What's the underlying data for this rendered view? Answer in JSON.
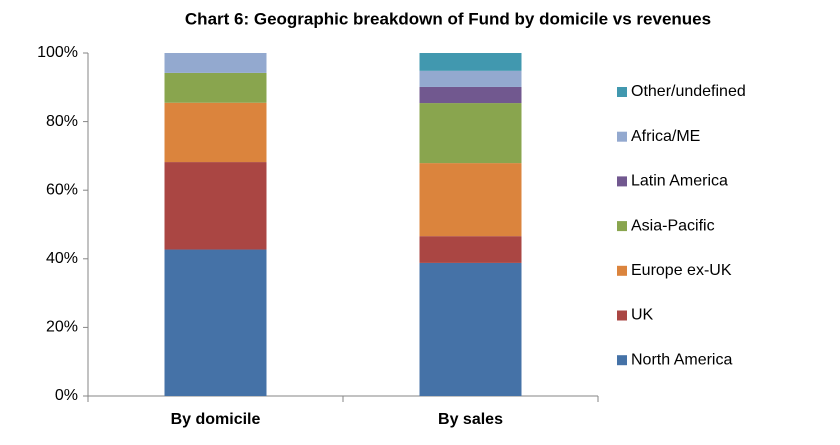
{
  "chart_data": {
    "type": "stacked_bar",
    "title": "Chart 6: Geographic breakdown of Fund by domicile vs revenues",
    "categories": [
      "By domicile",
      "By sales"
    ],
    "series": [
      {
        "name": "North America",
        "color": "#4572a7",
        "values": [
          42.7,
          38.8
        ]
      },
      {
        "name": "UK",
        "color": "#aa4643",
        "values": [
          25.5,
          7.8
        ]
      },
      {
        "name": "Europe ex-UK",
        "color": "#db843d",
        "values": [
          17.3,
          21.3
        ]
      },
      {
        "name": "Asia-Pacific",
        "color": "#89a54e",
        "values": [
          8.7,
          17.5
        ]
      },
      {
        "name": "Latin America",
        "color": "#71588f",
        "values": [
          0,
          4.7
        ]
      },
      {
        "name": "Africa/ME",
        "color": "#93a9cf",
        "values": [
          5.8,
          4.7
        ]
      },
      {
        "name": "Other/undefined",
        "color": "#4198af",
        "values": [
          0,
          5.2
        ]
      }
    ],
    "ylim": [
      0,
      100
    ],
    "yticks": [
      {
        "value": 0,
        "label": "0%"
      },
      {
        "value": 20,
        "label": "20%"
      },
      {
        "value": 40,
        "label": "40%"
      },
      {
        "value": 60,
        "label": "60%"
      },
      {
        "value": 80,
        "label": "80%"
      },
      {
        "value": 100,
        "label": "100%"
      }
    ],
    "grid": false,
    "legend": "right"
  }
}
